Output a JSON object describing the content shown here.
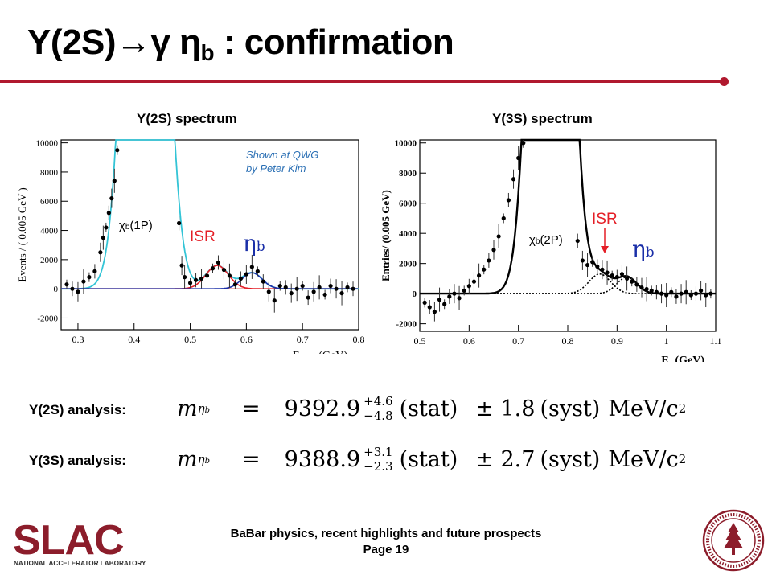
{
  "title": {
    "main": "Υ(2S)→γ η",
    "sub": "b",
    "rest": " : confirmation"
  },
  "colors": {
    "accent": "#b0182e",
    "isr": "#e41e26",
    "etab": "#1a2fa8",
    "note": "#2a6fb4",
    "fit_cyan": "#33c4d6"
  },
  "left_plot": {
    "heading": "Υ(2S) spectrum",
    "ylabel": "Events / ( 0.005 GeV )",
    "xlabel": "E",
    "xlabel_sub": "γ,CM",
    "xlabel_unit": " (GeV)",
    "note_line1": "Shown at QWG",
    "note_line2": "by Peter Kim",
    "chi_label": "χ",
    "chi_sub": "b",
    "chi_rest": "(1P)",
    "isr_label": "ISR",
    "eta_label": "η",
    "eta_sub": "b",
    "xticks": [
      "0.3",
      "0.4",
      "0.5",
      "0.6",
      "0.7",
      "0.8"
    ],
    "yticks": [
      "10000",
      "8000",
      "6000",
      "4000",
      "2000",
      "0",
      "-2000"
    ]
  },
  "right_plot": {
    "heading": "Υ(3S) spectrum",
    "ylabel": "Entries/ (0.005 GeV)",
    "xlabel": "E",
    "xlabel_sub": "γ",
    "xlabel_unit": " (GeV)",
    "chi_label": "χ",
    "chi_sub": "b",
    "chi_rest": "(2P)",
    "isr_label": "ISR",
    "eta_label": "η",
    "eta_sub": "b",
    "xticks": [
      "0.5",
      "0.6",
      "0.7",
      "0.8",
      "0.9",
      "1",
      "1.1"
    ],
    "yticks": [
      "10000",
      "8000",
      "6000",
      "4000",
      "2000",
      "0",
      "-2000"
    ]
  },
  "chart_data": [
    {
      "type": "scatter",
      "title": "Υ(2S) spectrum",
      "xlabel": "E γ,CM (GeV)",
      "ylabel": "Events / ( 0.005 GeV )",
      "xlim": [
        0.27,
        0.8
      ],
      "ylim": [
        -2800,
        10200
      ],
      "x": [
        0.28,
        0.29,
        0.3,
        0.31,
        0.32,
        0.33,
        0.34,
        0.345,
        0.35,
        0.355,
        0.36,
        0.365,
        0.37,
        0.48,
        0.485,
        0.49,
        0.5,
        0.51,
        0.52,
        0.53,
        0.54,
        0.55,
        0.56,
        0.57,
        0.58,
        0.59,
        0.6,
        0.61,
        0.62,
        0.63,
        0.64,
        0.65,
        0.66,
        0.67,
        0.68,
        0.69,
        0.7,
        0.71,
        0.72,
        0.73,
        0.74,
        0.75,
        0.76,
        0.77,
        0.78,
        0.79
      ],
      "y": [
        300,
        0,
        -200,
        500,
        800,
        1200,
        2500,
        3500,
        4200,
        5200,
        6200,
        7400,
        9500,
        4500,
        1600,
        800,
        400,
        600,
        700,
        900,
        1400,
        1800,
        1300,
        900,
        300,
        700,
        1000,
        1500,
        1200,
        500,
        -200,
        -800,
        200,
        100,
        -300,
        0,
        200,
        -600,
        -200,
        100,
        -400,
        200,
        0,
        -300,
        100,
        0
      ],
      "fit_curve_color": "#33c4d6",
      "isr_peak_gev": 0.548,
      "etab_peak_gev": 0.61
    },
    {
      "type": "scatter",
      "title": "Υ(3S) spectrum",
      "xlabel": "E γ (GeV)",
      "ylabel": "Entries/ (0.005 GeV)",
      "xlim": [
        0.5,
        1.1
      ],
      "ylim": [
        -2500,
        10200
      ],
      "x": [
        0.51,
        0.52,
        0.53,
        0.54,
        0.55,
        0.56,
        0.57,
        0.58,
        0.59,
        0.6,
        0.61,
        0.62,
        0.63,
        0.64,
        0.65,
        0.66,
        0.67,
        0.68,
        0.69,
        0.7,
        0.71,
        0.82,
        0.83,
        0.84,
        0.85,
        0.86,
        0.87,
        0.88,
        0.89,
        0.9,
        0.91,
        0.92,
        0.93,
        0.94,
        0.95,
        0.96,
        0.97,
        0.98,
        0.99,
        1.0,
        1.01,
        1.02,
        1.03,
        1.04,
        1.05,
        1.06,
        1.07,
        1.08,
        1.09
      ],
      "y": [
        -600,
        -900,
        -1200,
        -400,
        -700,
        -200,
        0,
        -300,
        200,
        500,
        800,
        1200,
        1600,
        2200,
        2900,
        3800,
        5000,
        6200,
        7600,
        9000,
        10000,
        3500,
        2200,
        1900,
        2100,
        1800,
        1600,
        1400,
        1200,
        1100,
        1300,
        1000,
        800,
        600,
        400,
        300,
        200,
        100,
        0,
        -100,
        100,
        -200,
        0,
        100,
        -100,
        0,
        200,
        -100,
        0
      ],
      "isr_peak_gev": 0.865,
      "etab_peak_gev": 0.92
    }
  ],
  "analysis": [
    {
      "label": "Υ(2S) analysis:",
      "lhs": "m",
      "lhs_sub": "η",
      "lhs_subsub": "b",
      "eq": "=",
      "value": "9392.9",
      "err_up": "+4.6",
      "err_down": "−4.8",
      "stat": "(stat)",
      "syst_pm": "± 1.8",
      "syst": "(syst)",
      "unit": "MeV/c",
      "unit_pow": "2"
    },
    {
      "label": "Υ(3S) analysis:",
      "lhs": "m",
      "lhs_sub": "η",
      "lhs_subsub": "b",
      "eq": "=",
      "value": "9388.9",
      "err_up": "+3.1",
      "err_down": "−2.3",
      "stat": "(stat)",
      "syst_pm": "± 2.7",
      "syst": "(syst)",
      "unit": "MeV/c",
      "unit_pow": "2"
    }
  ],
  "footer": {
    "line1": "BaBar physics, recent highlights and future prospects",
    "line2": "Page 19"
  },
  "logo": {
    "text": "SLAC",
    "tagline": "NATIONAL ACCELERATOR LABORATORY"
  }
}
